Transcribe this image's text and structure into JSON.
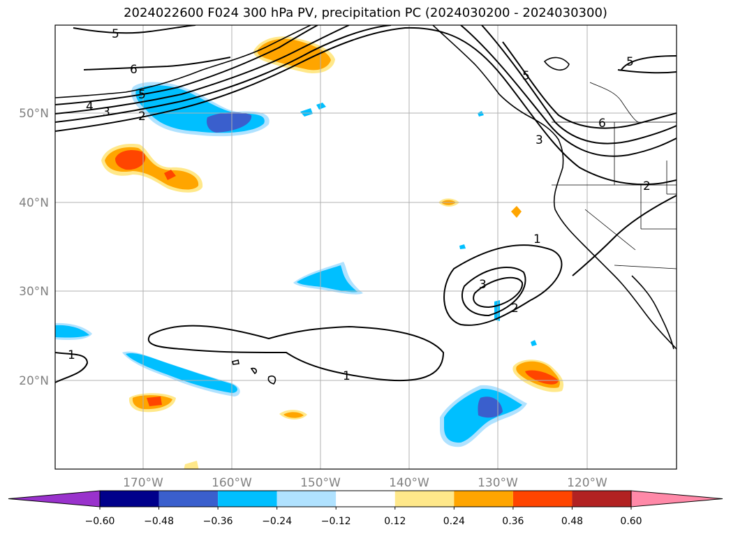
{
  "title": "2024022600 F024 300 hPa PV, precipitation PC (2024030200 - 2024030300)",
  "map": {
    "lat_labels": [
      "50°N",
      "40°N",
      "30°N",
      "20°N"
    ],
    "lon_labels": [
      "170°W",
      "160°W",
      "150°W",
      "140°W",
      "130°W",
      "120°W"
    ],
    "pv_contour_labels": [
      "5",
      "6",
      "5",
      "4",
      "3",
      "2",
      "5",
      "3",
      "6",
      "5",
      "2",
      "1",
      "3",
      "2",
      "1",
      "1"
    ]
  },
  "colorbar": {
    "ticks": [
      "−0.60",
      "−0.48",
      "−0.36",
      "−0.24",
      "−0.12",
      "0.12",
      "0.24",
      "0.36",
      "0.48",
      "0.60"
    ],
    "colors": [
      "#9932cc",
      "#00008b",
      "#3a5fcd",
      "#00bfff",
      "#b0e2ff",
      "#ffffff",
      "#ffe88a",
      "#ffa500",
      "#ff4500",
      "#b22222",
      "#ff89a8"
    ]
  }
}
